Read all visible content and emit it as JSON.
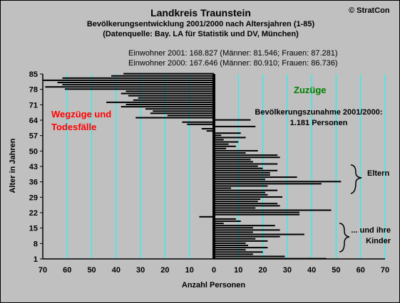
{
  "header": {
    "title": "Landkreis Traunstein",
    "subtitle": "Bevölkerungsentwicklung 2001/2000  nach Altersjahren (1-85)",
    "source": "(Datenquelle: Bay. LA für Statistik und DV, München)",
    "copyright": "© StratCon"
  },
  "population": {
    "line_2001": "Einwohner 2001: 168.827  (Männer: 81.546; Frauen: 87.281)",
    "line_2000": "Einwohner 2000: 167.646  (Männer: 80.910; Frauen: 86.736)"
  },
  "annotations": {
    "zuzuege": "Zuzüge",
    "wegzuege_line1": "Wegzüge und",
    "wegzuege_line2": "Todesfälle",
    "increase_line1": "Bevölkerungszunahme 2001/2000:",
    "increase_line2": "1.181 Personen",
    "eltern": "Eltern",
    "kinder_line1": "... und ihre",
    "kinder_line2": "Kinder"
  },
  "colors": {
    "background": "#c0c0c0",
    "gridline": "#00ffff",
    "bar": "#000000",
    "zuzuege": "#008000",
    "wegzuege": "#ff0000"
  },
  "chart_data": {
    "type": "bar",
    "orientation": "horizontal",
    "xlabel": "Anzahl Personen",
    "ylabel": "Alter in Jahren",
    "xlim": [
      -70,
      70
    ],
    "ylim": [
      1,
      85
    ],
    "x_tick_values": [
      -70,
      -60,
      -50,
      -40,
      -30,
      -20,
      -10,
      0,
      10,
      20,
      30,
      40,
      50,
      60,
      70
    ],
    "x_tick_labels": [
      "70",
      "60",
      "50",
      "40",
      "30",
      "20",
      "10",
      "0",
      "10",
      "20",
      "30",
      "40",
      "50",
      "60",
      "70"
    ],
    "y_tick_labels": [
      "1",
      "8",
      "15",
      "22",
      "29",
      "36",
      "43",
      "50",
      "57",
      "64",
      "71",
      "78",
      "85"
    ],
    "grid": true,
    "ages": [
      1,
      2,
      3,
      4,
      5,
      6,
      7,
      8,
      9,
      10,
      11,
      12,
      13,
      14,
      15,
      16,
      17,
      18,
      19,
      20,
      21,
      22,
      23,
      24,
      25,
      26,
      27,
      28,
      29,
      30,
      31,
      32,
      33,
      34,
      35,
      36,
      37,
      38,
      39,
      40,
      41,
      42,
      43,
      44,
      45,
      46,
      47,
      48,
      49,
      50,
      51,
      52,
      53,
      54,
      55,
      56,
      57,
      58,
      59,
      60,
      61,
      62,
      63,
      64,
      65,
      66,
      67,
      68,
      69,
      70,
      71,
      72,
      73,
      74,
      75,
      76,
      77,
      78,
      79,
      80,
      81,
      82,
      83,
      84,
      85
    ],
    "values": [
      46,
      29,
      16,
      20,
      13,
      22,
      14,
      13,
      22,
      17,
      27,
      37,
      16,
      27,
      16,
      25,
      4,
      11,
      9,
      -6,
      35,
      35,
      48,
      17,
      27,
      26,
      18,
      19,
      28,
      22,
      21,
      26,
      7,
      22,
      44,
      52,
      21,
      34,
      23,
      23,
      26,
      20,
      18,
      26,
      16,
      15,
      27,
      26,
      13,
      18,
      5,
      9,
      6,
      10,
      4,
      13,
      3,
      11,
      -3,
      -5,
      17,
      -11,
      -13,
      15,
      -32,
      -19,
      -26,
      -25,
      -28,
      -38,
      -36,
      -44,
      -33,
      -31,
      -35,
      -38,
      -36,
      -61,
      -69,
      -62,
      -64,
      -70,
      -62,
      -42,
      -37
    ],
    "annotations": [
      "Zuzüge",
      "Wegzüge und Todesfälle",
      "Bevölkerungszunahme 2001/2000: 1.181 Personen",
      "Eltern",
      "... und ihre Kinder"
    ]
  }
}
